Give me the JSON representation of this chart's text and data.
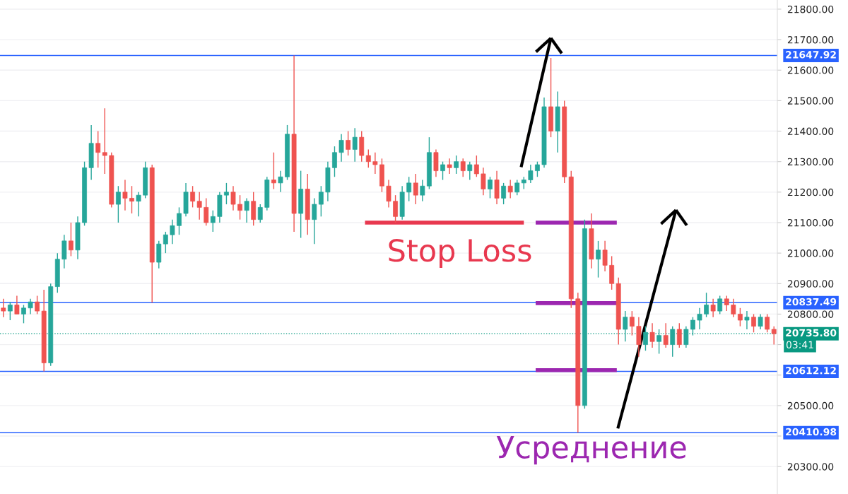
{
  "chart_data": {
    "type": "candlestick",
    "categories": [
      null,
      null,
      null,
      null,
      null,
      null,
      null,
      null,
      null,
      null,
      null,
      null,
      null,
      null,
      null,
      null,
      null,
      null,
      null,
      null,
      null,
      null,
      null,
      null,
      null,
      null,
      null,
      null,
      null,
      null,
      null,
      null,
      null,
      null,
      null,
      null,
      null,
      null,
      null,
      null,
      null,
      null,
      null,
      null,
      null,
      null,
      null,
      null,
      null,
      null,
      null,
      null,
      null,
      null,
      null,
      null,
      null,
      null,
      null,
      null,
      null,
      null,
      null,
      null,
      null,
      null,
      null,
      null,
      null,
      null,
      null,
      null,
      null,
      null,
      null,
      null,
      null,
      null,
      null,
      null,
      null,
      null,
      null,
      null,
      null,
      null,
      null,
      null,
      null,
      null,
      null,
      null,
      null,
      null,
      null,
      null,
      null,
      null,
      null,
      null,
      null,
      null,
      null,
      null,
      null,
      null,
      null,
      null,
      null,
      null,
      null,
      null,
      null,
      null,
      null
    ],
    "ohlc": [
      [
        20820,
        20850,
        20790,
        20810
      ],
      [
        20810,
        20840,
        20780,
        20830
      ],
      [
        20830,
        20860,
        20800,
        20800
      ],
      [
        20800,
        20830,
        20770,
        20820
      ],
      [
        20820,
        20850,
        20800,
        20840
      ],
      [
        20840,
        20860,
        20800,
        20810
      ],
      [
        20810,
        20880,
        20612.12,
        20640
      ],
      [
        20640,
        20900,
        20630,
        20890
      ],
      [
        20890,
        21000,
        20870,
        20980
      ],
      [
        20980,
        21060,
        20950,
        21040
      ],
      [
        21040,
        21100,
        20990,
        21010
      ],
      [
        21010,
        21120,
        20980,
        21100
      ],
      [
        21100,
        21300,
        21090,
        21280
      ],
      [
        21280,
        21420,
        21240,
        21360
      ],
      [
        21360,
        21400,
        21280,
        21330
      ],
      [
        21330,
        21475,
        21260,
        21320
      ],
      [
        21320,
        21330,
        21150,
        21160
      ],
      [
        21160,
        21220,
        21100,
        21200
      ],
      [
        21200,
        21240,
        21140,
        21180
      ],
      [
        21180,
        21220,
        21130,
        21170
      ],
      [
        21170,
        21200,
        21120,
        21190
      ],
      [
        21190,
        21300,
        21180,
        21280
      ],
      [
        21280,
        21290,
        20837.49,
        20970
      ],
      [
        20970,
        21040,
        20950,
        21030
      ],
      [
        21030,
        21070,
        21000,
        21060
      ],
      [
        21060,
        21110,
        21030,
        21090
      ],
      [
        21090,
        21150,
        21060,
        21130
      ],
      [
        21130,
        21230,
        21120,
        21200
      ],
      [
        21200,
        21220,
        21150,
        21170
      ],
      [
        21170,
        21200,
        21110,
        21150
      ],
      [
        21150,
        21180,
        21090,
        21100
      ],
      [
        21100,
        21140,
        21070,
        21120
      ],
      [
        21120,
        21200,
        21100,
        21190
      ],
      [
        21190,
        21230,
        21160,
        21200
      ],
      [
        21200,
        21220,
        21140,
        21160
      ],
      [
        21160,
        21190,
        21110,
        21140
      ],
      [
        21140,
        21180,
        21100,
        21170
      ],
      [
        21170,
        21200,
        21090,
        21110
      ],
      [
        21110,
        21160,
        21100,
        21150
      ],
      [
        21150,
        21250,
        21140,
        21240
      ],
      [
        21240,
        21330,
        21210,
        21230
      ],
      [
        21230,
        21270,
        21200,
        21250
      ],
      [
        21250,
        21420,
        21240,
        21390
      ],
      [
        21390,
        21647.92,
        21070,
        21130
      ],
      [
        21130,
        21270,
        21050,
        21210
      ],
      [
        21210,
        21260,
        21060,
        21110
      ],
      [
        21110,
        21180,
        21030,
        21160
      ],
      [
        21160,
        21220,
        21120,
        21200
      ],
      [
        21200,
        21300,
        21170,
        21280
      ],
      [
        21280,
        21350,
        21250,
        21330
      ],
      [
        21330,
        21390,
        21300,
        21370
      ],
      [
        21370,
        21400,
        21320,
        21340
      ],
      [
        21340,
        21410,
        21300,
        21380
      ],
      [
        21380,
        21400,
        21300,
        21320
      ],
      [
        21320,
        21340,
        21280,
        21300
      ],
      [
        21300,
        21330,
        21260,
        21290
      ],
      [
        21290,
        21310,
        21200,
        21220
      ],
      [
        21220,
        21240,
        21150,
        21170
      ],
      [
        21170,
        21190,
        21100,
        21120
      ],
      [
        21120,
        21220,
        21110,
        21200
      ],
      [
        21200,
        21250,
        21170,
        21230
      ],
      [
        21230,
        21260,
        21160,
        21190
      ],
      [
        21190,
        21240,
        21170,
        21220
      ],
      [
        21220,
        21380,
        21210,
        21330
      ],
      [
        21330,
        21340,
        21250,
        21270
      ],
      [
        21270,
        21300,
        21240,
        21290
      ],
      [
        21290,
        21310,
        21260,
        21280
      ],
      [
        21280,
        21320,
        21260,
        21300
      ],
      [
        21300,
        21310,
        21250,
        21270
      ],
      [
        21270,
        21300,
        21240,
        21290
      ],
      [
        21290,
        21320,
        21250,
        21260
      ],
      [
        21260,
        21280,
        21190,
        21210
      ],
      [
        21210,
        21250,
        21180,
        21240
      ],
      [
        21240,
        21270,
        21160,
        21180
      ],
      [
        21180,
        21230,
        21160,
        21220
      ],
      [
        21220,
        21240,
        21180,
        21200
      ],
      [
        21200,
        21240,
        21190,
        21230
      ],
      [
        21230,
        21250,
        21210,
        21240
      ],
      [
        21240,
        21290,
        21230,
        21270
      ],
      [
        21270,
        21300,
        21250,
        21290
      ],
      [
        21290,
        21510,
        21280,
        21480
      ],
      [
        21480,
        21640,
        21380,
        21400
      ],
      [
        21400,
        21530,
        21330,
        21480
      ],
      [
        21480,
        21500,
        21230,
        21250
      ],
      [
        21250,
        21270,
        20820,
        20850
      ],
      [
        20850,
        20870,
        20410.98,
        20500
      ],
      [
        20500,
        21110,
        20490,
        21080
      ],
      [
        21080,
        21130,
        20950,
        20980
      ],
      [
        20980,
        21040,
        20920,
        21010
      ],
      [
        21010,
        21040,
        20940,
        20960
      ],
      [
        20960,
        20990,
        20880,
        20900
      ],
      [
        20900,
        20920,
        20700,
        20750
      ],
      [
        20750,
        20810,
        20710,
        20790
      ],
      [
        20790,
        20810,
        20730,
        20760
      ],
      [
        20760,
        20790,
        20660,
        20700
      ],
      [
        20700,
        20760,
        20680,
        20740
      ],
      [
        20740,
        20770,
        20690,
        20710
      ],
      [
        20710,
        20750,
        20670,
        20730
      ],
      [
        20730,
        20770,
        20690,
        20700
      ],
      [
        20700,
        20760,
        20660,
        20750
      ],
      [
        20750,
        20770,
        20690,
        20700
      ],
      [
        20700,
        20760,
        20690,
        20750
      ],
      [
        20750,
        20790,
        20730,
        20780
      ],
      [
        20780,
        20820,
        20750,
        20800
      ],
      [
        20800,
        20870,
        20790,
        20830
      ],
      [
        20830,
        20850,
        20790,
        20810
      ],
      [
        20810,
        20860,
        20800,
        20850
      ],
      [
        20850,
        20860,
        20810,
        20830
      ],
      [
        20830,
        20850,
        20790,
        20800
      ],
      [
        20800,
        20820,
        20760,
        20780
      ],
      [
        20780,
        20810,
        20750,
        20790
      ],
      [
        20790,
        20800,
        20740,
        20760
      ],
      [
        20760,
        20800,
        20750,
        20790
      ],
      [
        20790,
        20800,
        20740,
        20750
      ],
      [
        20750,
        20760,
        20700,
        20735.8
      ]
    ],
    "colors": [
      "#ef5350",
      "#26a69a",
      "#ef5350",
      "#26a69a",
      "#26a69a",
      "#ef5350",
      "#ef5350",
      "#26a69a",
      "#26a69a",
      "#26a69a",
      "#ef5350",
      "#26a69a",
      "#26a69a",
      "#26a69a",
      "#ef5350",
      "#ef5350",
      "#ef5350",
      "#26a69a",
      "#ef5350",
      "#ef5350",
      "#26a69a",
      "#26a69a",
      "#ef5350",
      "#26a69a",
      "#26a69a",
      "#26a69a",
      "#26a69a",
      "#26a69a",
      "#ef5350",
      "#ef5350",
      "#ef5350",
      "#26a69a",
      "#26a69a",
      "#26a69a",
      "#ef5350",
      "#ef5350",
      "#26a69a",
      "#ef5350",
      "#26a69a",
      "#26a69a",
      "#ef5350",
      "#26a69a",
      "#26a69a",
      "#ef5350",
      "#26a69a",
      "#ef5350",
      "#26a69a",
      "#26a69a",
      "#26a69a",
      "#26a69a",
      "#26a69a",
      "#ef5350",
      "#26a69a",
      "#ef5350",
      "#ef5350",
      "#ef5350",
      "#ef5350",
      "#ef5350",
      "#ef5350",
      "#26a69a",
      "#26a69a",
      "#ef5350",
      "#26a69a",
      "#26a69a",
      "#ef5350",
      "#26a69a",
      "#ef5350",
      "#26a69a",
      "#ef5350",
      "#26a69a",
      "#ef5350",
      "#ef5350",
      "#26a69a",
      "#ef5350",
      "#26a69a",
      "#ef5350",
      "#26a69a",
      "#26a69a",
      "#26a69a",
      "#26a69a",
      "#26a69a",
      "#ef5350",
      "#26a69a",
      "#ef5350",
      "#ef5350",
      "#ef5350",
      "#26a69a",
      "#ef5350",
      "#26a69a",
      "#ef5350",
      "#ef5350",
      "#ef5350",
      "#26a69a",
      "#ef5350",
      "#ef5350",
      "#26a69a",
      "#ef5350",
      "#26a69a",
      "#ef5350",
      "#26a69a",
      "#ef5350",
      "#26a69a",
      "#26a69a",
      "#26a69a",
      "#26a69a",
      "#ef5350",
      "#26a69a",
      "#ef5350",
      "#ef5350",
      "#ef5350",
      "#26a69a",
      "#ef5350",
      "#26a69a",
      "#ef5350",
      "#ef5350"
    ],
    "ylim": [
      20210,
      21830
    ],
    "yticks": [
      {
        "value": 20300,
        "label": "20300.00"
      },
      {
        "value": 20400,
        "label": null
      },
      {
        "value": 20500,
        "label": "20500.00"
      },
      {
        "value": 20600,
        "label": null
      },
      {
        "value": 20700,
        "label": null
      },
      {
        "value": 20800,
        "label": "20800.00"
      },
      {
        "value": 20900,
        "label": "20900.00"
      },
      {
        "value": 21000,
        "label": "21000.00"
      },
      {
        "value": 21100,
        "label": "21100.00"
      },
      {
        "value": 21200,
        "label": "21200.00"
      },
      {
        "value": 21300,
        "label": "21300.00"
      },
      {
        "value": 21400,
        "label": "21400.00"
      },
      {
        "value": 21500,
        "label": "21500.00"
      },
      {
        "value": 21600,
        "label": "21600.00"
      },
      {
        "value": 21700,
        "label": "21700.00"
      },
      {
        "value": 21800,
        "label": "21800.00"
      }
    ],
    "tick_labels": "y",
    "grid": "y",
    "ref_lines": [
      {
        "axis": "y",
        "value": 21647.92,
        "label": "21647.92",
        "color": "#2962ff"
      },
      {
        "axis": "y",
        "value": 20837.49,
        "label": "20837.49",
        "color": "#2962ff"
      },
      {
        "axis": "y",
        "value": 20735.8,
        "label": "20735.80",
        "color": "#089981",
        "line_style": "dotted"
      },
      {
        "axis": "y",
        "value": 20612.12,
        "label": "20612.12",
        "color": "#2962ff"
      },
      {
        "axis": "y",
        "value": 20410.98,
        "label": "20410.98",
        "color": "#2962ff"
      }
    ],
    "annotations": [
      "Stop Loss",
      "Усреднение",
      "03:41"
    ]
  }
}
